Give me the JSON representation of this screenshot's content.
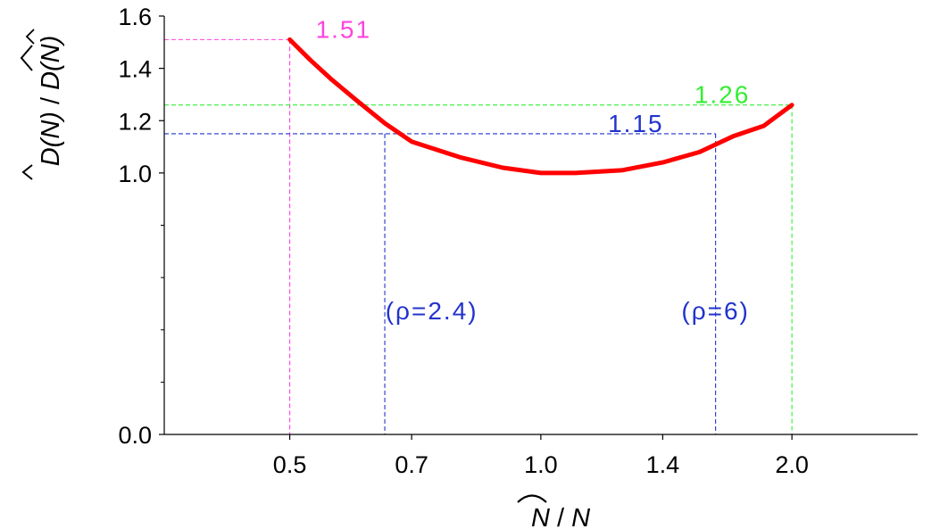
{
  "chart_data": {
    "type": "line",
    "xlabel_parts": [
      "N",
      " / ",
      "N"
    ],
    "ylabel_parts": [
      "D(N)",
      " / ",
      "D(N)"
    ],
    "x_scale": "log",
    "x_ticks": [
      {
        "value": 0.5,
        "label": "0.5"
      },
      {
        "value": 0.7,
        "label": "0.7"
      },
      {
        "value": 1.0,
        "label": "1.0"
      },
      {
        "value": 1.4,
        "label": "1.4"
      },
      {
        "value": 2.0,
        "label": "2.0"
      }
    ],
    "xlim": [
      0.3536,
      2.83
    ],
    "y_ticks": [
      {
        "value": 0.0,
        "label": "0.0"
      },
      {
        "value": 1.0,
        "label": "1.0"
      },
      {
        "value": 1.2,
        "label": "1.2"
      },
      {
        "value": 1.4,
        "label": "1.4"
      },
      {
        "value": 1.6,
        "label": "1.6"
      }
    ],
    "y_minor_ticks": [
      0.2,
      0.4,
      0.6,
      0.8
    ],
    "ylim": [
      0.0,
      1.6
    ],
    "series": [
      {
        "color": "#ff0000",
        "x": [
          0.5,
          0.53,
          0.56,
          0.6,
          0.65,
          0.7,
          0.8,
          0.9,
          1.0,
          1.1,
          1.25,
          1.4,
          1.55,
          1.7,
          1.85,
          2.0
        ],
        "y": [
          1.51,
          1.43,
          1.36,
          1.28,
          1.19,
          1.12,
          1.06,
          1.02,
          1.0,
          1.0,
          1.01,
          1.04,
          1.08,
          1.14,
          1.18,
          1.26
        ]
      }
    ],
    "reference_lines": [
      {
        "color": "#ff44dd",
        "x": 0.5,
        "y": 1.51,
        "label": "1.51",
        "label_x": 0.58,
        "label_y": 1.51
      },
      {
        "color": "#2233cc",
        "x": [
          0.65,
          1.62
        ],
        "y": 1.15,
        "label": "1.15",
        "label_x": 1.3,
        "label_y": 1.15
      },
      {
        "color": "#33ee33",
        "x": 2.0,
        "y": 1.26,
        "label": "1.26",
        "label_x": 1.65,
        "label_y": 1.26
      }
    ],
    "annotations": [
      {
        "text": "(ρ=2.4)",
        "color": "#2233cc",
        "x": 0.74,
        "y": 0.44
      },
      {
        "text": "(ρ=6)",
        "color": "#2233cc",
        "x": 1.62,
        "y": 0.44
      }
    ]
  }
}
